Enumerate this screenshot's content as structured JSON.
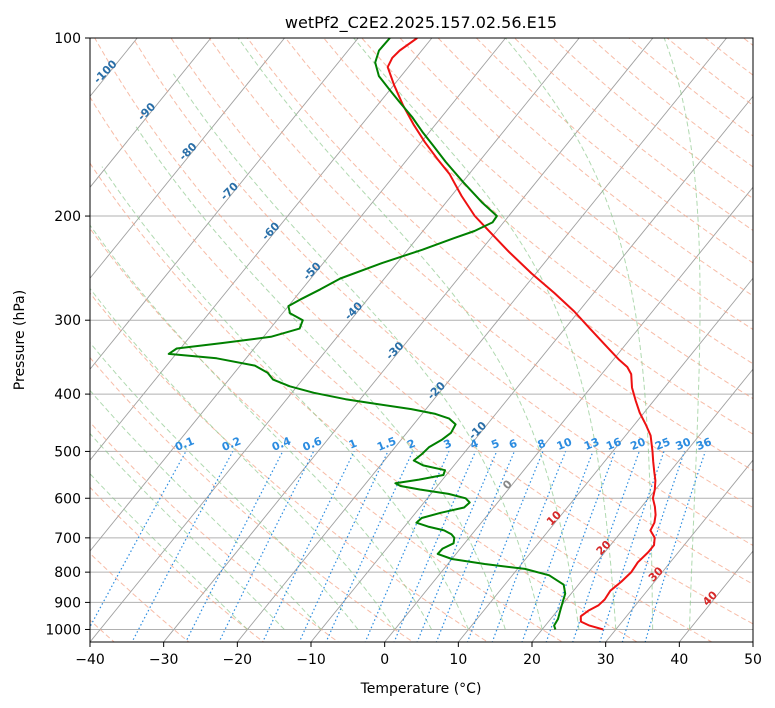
{
  "chart_data": {
    "type": "line",
    "chart_kind": "skew-T log-P diagram",
    "title": "wetPf2_C2E2.2025.157.02.56.E15",
    "xlabel": "Temperature (°C)",
    "ylabel": "Pressure (hPa)",
    "xlim": [
      -40,
      50
    ],
    "ylim": [
      1050,
      100
    ],
    "y_scale": "log",
    "grid": true,
    "x_ticks": [
      -40,
      -30,
      -20,
      -10,
      0,
      10,
      20,
      30,
      40,
      50
    ],
    "x_tick_labels": [
      "−40",
      "−30",
      "−20",
      "−10",
      "0",
      "10",
      "20",
      "30",
      "40",
      "50"
    ],
    "y_ticks": [
      100,
      200,
      300,
      400,
      500,
      600,
      700,
      800,
      900,
      1000
    ],
    "y_tick_labels": [
      "100",
      "200",
      "300",
      "400",
      "500",
      "600",
      "700",
      "800",
      "900",
      "1000"
    ],
    "isotherm_labels": [
      -100,
      -90,
      -80,
      -70,
      -60,
      -50,
      -40,
      -30,
      -20,
      -10,
      0,
      10,
      20,
      30,
      40
    ],
    "mixing_ratio_labels": [
      "0.1",
      "0.2",
      "0.4",
      "0.6",
      "1",
      "1.5",
      "2",
      "3",
      "4",
      "5",
      "6",
      "8",
      "10",
      "13",
      "16",
      "20",
      "25",
      "30",
      "36"
    ],
    "colors": {
      "temperature": "#ee1111",
      "dewpoint": "#008000",
      "isotherm": "#a0a0a0",
      "dry_adiabat": "#f4a58a",
      "moist_adiabat": "#8fc98f",
      "mixing_ratio": "#2b8ce0",
      "grid": "#b0b0b0",
      "isotherm_label_cold": "#2a6fa8",
      "isotherm_label_warm": "#d62828",
      "isotherm_label_zero": "#888888"
    },
    "series": [
      {
        "role": "temperature",
        "points": [
          [
            1000,
            28.3
          ],
          [
            985,
            26.0
          ],
          [
            970,
            24.4
          ],
          [
            950,
            23.8
          ],
          [
            930,
            24.2
          ],
          [
            910,
            25.0
          ],
          [
            890,
            25.2
          ],
          [
            860,
            25.0
          ],
          [
            830,
            25.5
          ],
          [
            800,
            25.8
          ],
          [
            770,
            25.6
          ],
          [
            740,
            25.9
          ],
          [
            720,
            25.9
          ],
          [
            700,
            25.2
          ],
          [
            680,
            23.8
          ],
          [
            660,
            23.5
          ],
          [
            640,
            22.8
          ],
          [
            620,
            21.8
          ],
          [
            600,
            20.6
          ],
          [
            580,
            19.9
          ],
          [
            560,
            19.0
          ],
          [
            540,
            17.8
          ],
          [
            520,
            16.6
          ],
          [
            500,
            15.4
          ],
          [
            470,
            13.4
          ],
          [
            450,
            11.5
          ],
          [
            430,
            9.4
          ],
          [
            410,
            7.5
          ],
          [
            390,
            5.6
          ],
          [
            370,
            4.0
          ],
          [
            360,
            2.7
          ],
          [
            350,
            0.8
          ],
          [
            330,
            -2.8
          ],
          [
            310,
            -6.6
          ],
          [
            290,
            -10.6
          ],
          [
            270,
            -15.3
          ],
          [
            250,
            -20.6
          ],
          [
            230,
            -26.0
          ],
          [
            210,
            -31.6
          ],
          [
            200,
            -34.6
          ],
          [
            185,
            -38.6
          ],
          [
            170,
            -42.6
          ],
          [
            160,
            -46.0
          ],
          [
            150,
            -49.5
          ],
          [
            140,
            -53.0
          ],
          [
            130,
            -56.5
          ],
          [
            120,
            -60.0
          ],
          [
            112,
            -62.8
          ],
          [
            108,
            -63.2
          ],
          [
            105,
            -63.0
          ],
          [
            100,
            -62.0
          ]
        ]
      },
      {
        "role": "dewpoint",
        "points": [
          [
            1000,
            21.8
          ],
          [
            985,
            21.2
          ],
          [
            960,
            21.0
          ],
          [
            930,
            20.4
          ],
          [
            900,
            19.8
          ],
          [
            870,
            19.2
          ],
          [
            840,
            18.0
          ],
          [
            810,
            15.0
          ],
          [
            790,
            11.0
          ],
          [
            775,
            5.0
          ],
          [
            760,
            0.0
          ],
          [
            745,
            -2.5
          ],
          [
            730,
            -2.4
          ],
          [
            715,
            -1.5
          ],
          [
            700,
            -2.0
          ],
          [
            690,
            -2.8
          ],
          [
            680,
            -4.2
          ],
          [
            670,
            -6.8
          ],
          [
            660,
            -8.8
          ],
          [
            648,
            -8.6
          ],
          [
            635,
            -6.6
          ],
          [
            622,
            -4.0
          ],
          [
            610,
            -3.8
          ],
          [
            600,
            -4.8
          ],
          [
            590,
            -7.6
          ],
          [
            580,
            -12.0
          ],
          [
            572,
            -15.0
          ],
          [
            566,
            -16.0
          ],
          [
            558,
            -13.2
          ],
          [
            548,
            -10.4
          ],
          [
            538,
            -10.7
          ],
          [
            528,
            -14.2
          ],
          [
            518,
            -16.0
          ],
          [
            505,
            -15.6
          ],
          [
            492,
            -15.4
          ],
          [
            478,
            -14.5
          ],
          [
            465,
            -14.0
          ],
          [
            450,
            -14.3
          ],
          [
            440,
            -15.8
          ],
          [
            432,
            -18.2
          ],
          [
            424,
            -22.0
          ],
          [
            416,
            -27.0
          ],
          [
            408,
            -32.0
          ],
          [
            398,
            -37.0
          ],
          [
            388,
            -41.0
          ],
          [
            378,
            -44.0
          ],
          [
            368,
            -45.5
          ],
          [
            358,
            -48.0
          ],
          [
            348,
            -54.0
          ],
          [
            342,
            -61.0
          ],
          [
            335,
            -60.5
          ],
          [
            328,
            -55.0
          ],
          [
            320,
            -49.0
          ],
          [
            310,
            -46.0
          ],
          [
            300,
            -46.5
          ],
          [
            292,
            -49.0
          ],
          [
            284,
            -50.0
          ],
          [
            276,
            -49.0
          ],
          [
            266,
            -47.5
          ],
          [
            255,
            -46.0
          ],
          [
            240,
            -42.0
          ],
          [
            228,
            -38.0
          ],
          [
            218,
            -35.0
          ],
          [
            212,
            -33.0
          ],
          [
            205,
            -31.5
          ],
          [
            200,
            -31.6
          ],
          [
            190,
            -35.0
          ],
          [
            175,
            -40.0
          ],
          [
            162,
            -44.5
          ],
          [
            152,
            -48.0
          ],
          [
            144,
            -51.0
          ],
          [
            136,
            -54.0
          ],
          [
            128,
            -57.5
          ],
          [
            122,
            -60.2
          ],
          [
            116,
            -63.0
          ],
          [
            110,
            -65.0
          ],
          [
            105,
            -65.8
          ],
          [
            100,
            -65.7
          ]
        ]
      }
    ]
  }
}
